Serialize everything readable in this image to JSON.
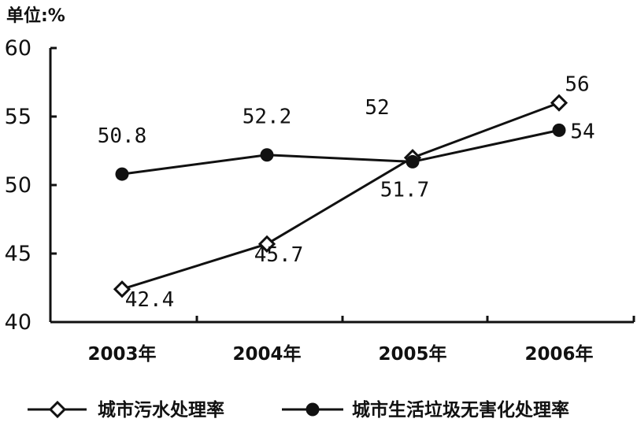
{
  "chart_data": {
    "type": "line",
    "unit_label": "单位:%",
    "categories": [
      "2003年",
      "2004年",
      "2005年",
      "2006年"
    ],
    "ylim": [
      40,
      60
    ],
    "yticks": [
      "40",
      "45",
      "50",
      "55",
      "60"
    ],
    "grid": false,
    "legend_position": "bottom",
    "series": [
      {
        "name": "城市污水处理率",
        "marker": "open-diamond",
        "values": [
          42.4,
          45.7,
          52,
          56
        ],
        "labels": [
          "42.4",
          "45.7",
          "52",
          "56"
        ]
      },
      {
        "name": "城市生活垃圾无害化处理率",
        "marker": "filled-circle",
        "values": [
          50.8,
          52.2,
          51.7,
          54
        ],
        "labels": [
          "50.8",
          "52.2",
          "51.7",
          "54"
        ]
      }
    ]
  }
}
